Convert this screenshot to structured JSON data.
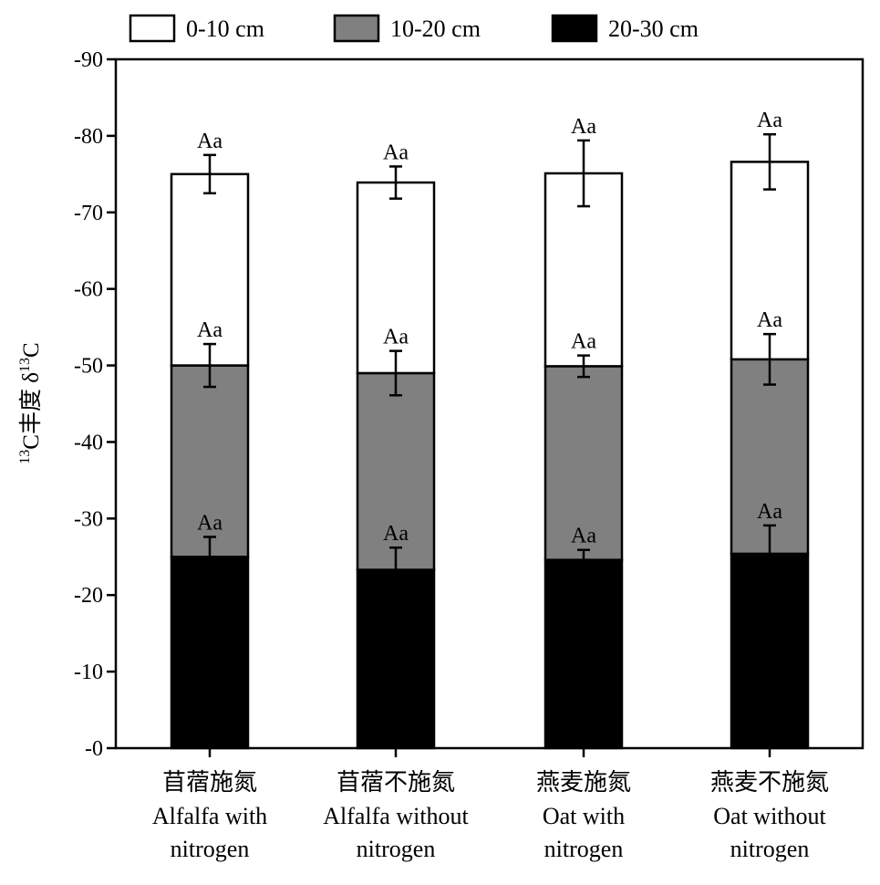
{
  "chart_data": {
    "type": "bar",
    "stacked": true,
    "ylabel_parts": [
      "13",
      "C丰度 δ",
      "13",
      "C"
    ],
    "yaxis": {
      "range": [
        0,
        -90
      ],
      "ticks": [
        0,
        -10,
        -20,
        -30,
        -40,
        -50,
        -60,
        -70,
        -80,
        -90
      ],
      "tick_labels": [
        "-0",
        "-10",
        "-20",
        "-30",
        "-40",
        "-50",
        "-60",
        "-70",
        "-80",
        "-90"
      ]
    },
    "grid": false,
    "legend_position": "top",
    "categories": [
      {
        "cn": "苜蓿施氮",
        "en1": "Alfalfa with",
        "en2": "nitrogen"
      },
      {
        "cn": "苜蓿不施氮",
        "en1": "Alfalfa without",
        "en2": "nitrogen"
      },
      {
        "cn": "燕麦施氮",
        "en1": "Oat with",
        "en2": "nitrogen"
      },
      {
        "cn": "燕麦不施氮",
        "en1": "Oat without",
        "en2": "nitrogen"
      }
    ],
    "series": [
      {
        "name": "20-30 cm",
        "color": "#000000",
        "values": [
          -25.0,
          -23.3,
          -24.6,
          -25.4
        ],
        "errors": [
          2.6,
          2.9,
          1.3,
          3.7
        ],
        "labels": [
          "Aa",
          "Aa",
          "Aa",
          "Aa"
        ]
      },
      {
        "name": "10-20 cm",
        "color": "#808080",
        "values": [
          -25.0,
          -25.7,
          -25.3,
          -25.4
        ],
        "errors": [
          2.8,
          2.9,
          1.4,
          3.3
        ],
        "labels": [
          "Aa",
          "Aa",
          "Aa",
          "Aa"
        ]
      },
      {
        "name": "0-10 cm",
        "color": "#ffffff",
        "values": [
          -25.0,
          -24.9,
          -25.2,
          -25.8
        ],
        "errors": [
          2.5,
          2.1,
          4.3,
          3.6
        ],
        "labels": [
          "Aa",
          "Aa",
          "Aa",
          "Aa"
        ]
      }
    ],
    "legend_order": [
      "0-10 cm",
      "10-20 cm",
      "20-30 cm"
    ]
  }
}
